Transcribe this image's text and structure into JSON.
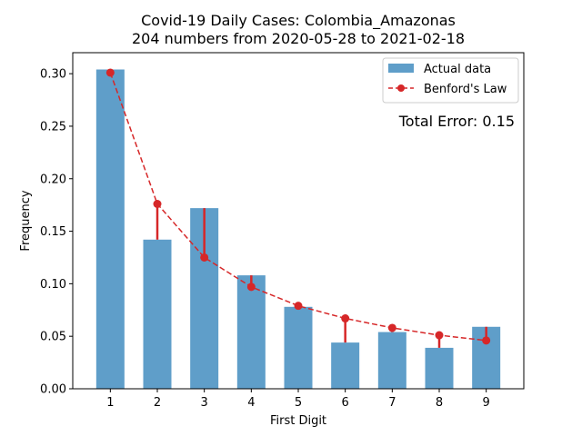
{
  "chart_data": {
    "type": "bar",
    "title": "Covid-19 Daily Cases: Colombia_Amazonas",
    "subtitle": "204 numbers from 2020-05-28 to 2021-02-18",
    "xlabel": "First Digit",
    "ylabel": "Frequency",
    "categories": [
      "1",
      "2",
      "3",
      "4",
      "5",
      "6",
      "7",
      "8",
      "9"
    ],
    "x": [
      1,
      2,
      3,
      4,
      5,
      6,
      7,
      8,
      9
    ],
    "ylim": [
      0,
      0.32
    ],
    "yticks": [
      0.0,
      0.05,
      0.1,
      0.15,
      0.2,
      0.25,
      0.3
    ],
    "ytick_labels": [
      "0.00",
      "0.05",
      "0.10",
      "0.15",
      "0.20",
      "0.25",
      "0.30"
    ],
    "grid": false,
    "legend_position": "top-right",
    "series": [
      {
        "name": "Actual data",
        "kind": "bar",
        "color": "#5f9ec9",
        "values": [
          0.304,
          0.142,
          0.172,
          0.108,
          0.078,
          0.044,
          0.054,
          0.039,
          0.059
        ]
      },
      {
        "name": "Benford's Law",
        "kind": "line",
        "style": "dashed",
        "color": "#d62728",
        "values": [
          0.301,
          0.176,
          0.125,
          0.097,
          0.079,
          0.067,
          0.058,
          0.051,
          0.046
        ]
      }
    ],
    "annotation": "Total Error: 0.15",
    "annotation_color": "#d62728"
  }
}
